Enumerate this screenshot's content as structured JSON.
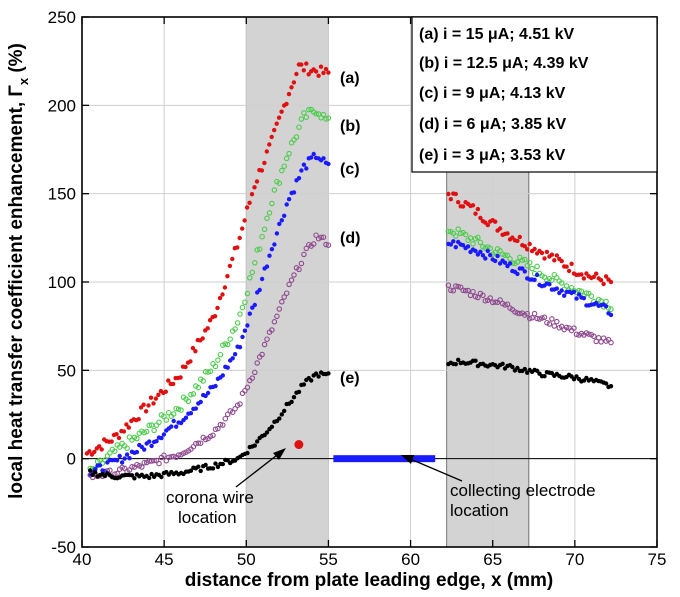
{
  "chart_data": {
    "type": "scatter",
    "xlabel": "distance from plate leading edge, x (mm)",
    "ylabel": "local heat transfer coefficient enhancement, Γ",
    "ylabel_subscript": "x",
    "ylabel_unit": " (%)",
    "xlim": [
      40,
      75
    ],
    "ylim": [
      -50,
      250
    ],
    "xticks": [
      40,
      45,
      50,
      55,
      60,
      65,
      70,
      75
    ],
    "yticks": [
      -50,
      0,
      50,
      100,
      150,
      200,
      250
    ],
    "grid": true,
    "legend_position": "top-right",
    "shaded_regions": [
      [
        50,
        55
      ],
      [
        62.2,
        67.2
      ]
    ],
    "collecting_electrode": {
      "x_start": 55.3,
      "x_end": 61.5,
      "y": 0,
      "color": "#1a1aff"
    },
    "corona_wire_point": {
      "x": 53.2,
      "y": 8,
      "color": "#e01010"
    },
    "annotations": [
      {
        "text": "corona wire",
        "line": 1
      },
      {
        "text": "location",
        "line": 2
      },
      {
        "text": "collecting electrode",
        "line": 1
      },
      {
        "text": "location",
        "line": 2
      }
    ],
    "series": [
      {
        "tag": "(a)",
        "legend": "(a) i = 15 μA; 4.51 kV",
        "color": "#e01010",
        "hollow": false,
        "upstream": [
          [
            40.3,
            3
          ],
          [
            42,
            12
          ],
          [
            44,
            30
          ],
          [
            46,
            48
          ],
          [
            48,
            80
          ],
          [
            49.5,
            122
          ],
          [
            50.5,
            155
          ],
          [
            51.5,
            178
          ],
          [
            52.5,
            205
          ],
          [
            53.2,
            222
          ],
          [
            54,
            220
          ],
          [
            55,
            218
          ]
        ],
        "downstream": [
          [
            62.3,
            150
          ],
          [
            63,
            146
          ],
          [
            64,
            140
          ],
          [
            65,
            133
          ],
          [
            66,
            127
          ],
          [
            67,
            122
          ],
          [
            68,
            117
          ],
          [
            69,
            112
          ],
          [
            70,
            107
          ],
          [
            71,
            103
          ],
          [
            72.2,
            100
          ]
        ],
        "noise": 3
      },
      {
        "tag": "(b)",
        "legend": "(b) i = 12.5 μA; 4.39 kV",
        "color": "#4ccc4c",
        "hollow": true,
        "upstream": [
          [
            40.5,
            -8
          ],
          [
            42,
            4
          ],
          [
            44,
            16
          ],
          [
            46,
            30
          ],
          [
            48,
            52
          ],
          [
            49.5,
            78
          ],
          [
            50.5,
            110
          ],
          [
            51.5,
            145
          ],
          [
            52.5,
            172
          ],
          [
            53.5,
            193
          ],
          [
            54.3,
            198
          ],
          [
            55,
            190
          ]
        ],
        "downstream": [
          [
            62.3,
            130
          ],
          [
            63,
            127
          ],
          [
            64,
            123
          ],
          [
            65,
            118
          ],
          [
            66,
            114
          ],
          [
            67,
            110
          ],
          [
            68,
            105
          ],
          [
            69,
            100
          ],
          [
            70,
            96
          ],
          [
            71,
            92
          ],
          [
            72.2,
            87
          ]
        ],
        "noise": 3
      },
      {
        "tag": "(c)",
        "legend": "(c) i = 9 μA; 4.13 kV",
        "color": "#1a1aff",
        "hollow": false,
        "upstream": [
          [
            40.5,
            -8
          ],
          [
            42,
            -2
          ],
          [
            44,
            8
          ],
          [
            46,
            22
          ],
          [
            48,
            40
          ],
          [
            49.5,
            62
          ],
          [
            50.5,
            88
          ],
          [
            51.5,
            118
          ],
          [
            52.5,
            145
          ],
          [
            53.5,
            165
          ],
          [
            54.3,
            172
          ],
          [
            55,
            165
          ]
        ],
        "downstream": [
          [
            62.3,
            122
          ],
          [
            63,
            121
          ],
          [
            64,
            118
          ],
          [
            65,
            114
          ],
          [
            66,
            109
          ],
          [
            67,
            105
          ],
          [
            68,
            100
          ],
          [
            69,
            96
          ],
          [
            70,
            92
          ],
          [
            71,
            88
          ],
          [
            72.2,
            83
          ]
        ],
        "noise": 2.5
      },
      {
        "tag": "(d)",
        "legend": "(d) i = 6 μA; 3.85 kV",
        "color": "#8e4a8e",
        "hollow": true,
        "upstream": [
          [
            40.5,
            -10
          ],
          [
            42,
            -8
          ],
          [
            44,
            -3
          ],
          [
            46,
            3
          ],
          [
            48,
            15
          ],
          [
            49.5,
            30
          ],
          [
            50.5,
            50
          ],
          [
            51.5,
            72
          ],
          [
            52.5,
            95
          ],
          [
            53.5,
            115
          ],
          [
            54.3,
            126
          ],
          [
            55,
            122
          ]
        ],
        "downstream": [
          [
            62.3,
            97
          ],
          [
            63,
            96
          ],
          [
            64,
            93
          ],
          [
            65,
            90
          ],
          [
            66,
            86
          ],
          [
            67,
            82
          ],
          [
            68,
            79
          ],
          [
            69,
            76
          ],
          [
            70,
            72
          ],
          [
            71,
            69
          ],
          [
            72.2,
            65
          ]
        ],
        "noise": 2
      },
      {
        "tag": "(e)",
        "legend": "(e) i = 3 μA; 3.53 kV",
        "color": "#000000",
        "hollow": false,
        "upstream": [
          [
            40.5,
            -8
          ],
          [
            42,
            -10
          ],
          [
            44,
            -10
          ],
          [
            46,
            -8
          ],
          [
            48,
            -4
          ],
          [
            49.5,
            0
          ],
          [
            50.5,
            8
          ],
          [
            51.5,
            18
          ],
          [
            52.5,
            30
          ],
          [
            53.5,
            42
          ],
          [
            54.3,
            48
          ],
          [
            55,
            47
          ]
        ],
        "downstream": [
          [
            62.3,
            54
          ],
          [
            63,
            55
          ],
          [
            64,
            54
          ],
          [
            65,
            53
          ],
          [
            66,
            52
          ],
          [
            67,
            50
          ],
          [
            68,
            48
          ],
          [
            69,
            47
          ],
          [
            70,
            46
          ],
          [
            71,
            44
          ],
          [
            72.2,
            41
          ]
        ],
        "noise": 1.5
      }
    ]
  }
}
